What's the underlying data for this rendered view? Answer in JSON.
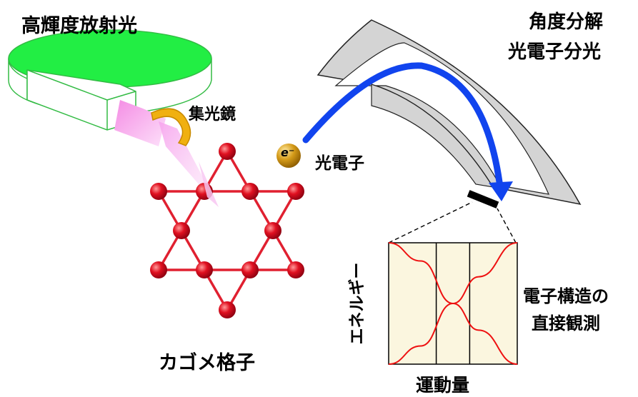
{
  "labels": {
    "source": "高輝度放射光",
    "mirror": "集光鏡",
    "analyzer_line1": "角度分解",
    "analyzer_line2": "光電子分光",
    "photoelectron": "光電子",
    "electron_symbol": "e⁻",
    "kagome": "カゴメ格子",
    "result_line1": "電子構造の",
    "result_line2": "直接観測",
    "x_axis": "運動量",
    "y_axis": "エネルギー"
  },
  "colors": {
    "ring_fill": "#22ee44",
    "ring_stroke": "#33bb44",
    "beam": "#ee77dd",
    "mirror": "#f0b010",
    "atom": "#dd1122",
    "bond": "#e02030",
    "analyzer": "#d4d4d4",
    "electron_path": "#1144ee",
    "plot_bg": "#fbf6df",
    "band": "#ee1111",
    "electron_ball": "#c89010"
  },
  "chart_data": {
    "type": "line",
    "xlabel": "運動量",
    "ylabel": "エネルギー",
    "vertical_lines": [
      0.37,
      0.63
    ],
    "series": [
      {
        "x": [
          0,
          0.25,
          0.5,
          0.7,
          1.0
        ],
        "y": [
          0.0,
          0.15,
          0.5,
          0.72,
          1.0
        ]
      },
      {
        "x": [
          0,
          0.25,
          0.5,
          0.7,
          1.0
        ],
        "y": [
          1.0,
          0.85,
          0.5,
          0.28,
          0.0
        ]
      }
    ]
  }
}
